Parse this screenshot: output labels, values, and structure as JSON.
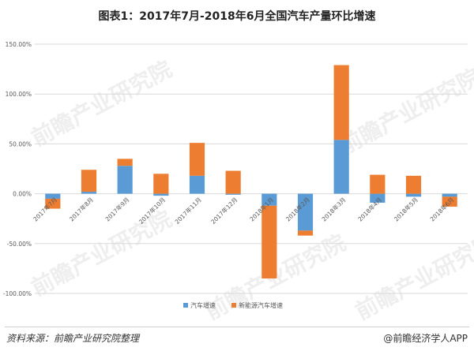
{
  "title": "图表1：2017年7月-2018年6月全国汽车产量环比增速",
  "watermark_text": "前瞻产业研究院",
  "footer": {
    "source": "资料来源：前瞻产业研究院整理",
    "brand": "@前瞻经济学人APP"
  },
  "colors": {
    "blue": "#5b9bd5",
    "orange": "#ed7d31",
    "grid": "#d9d9d9",
    "axis_text": "#595959"
  },
  "chart_data": {
    "type": "bar",
    "stacked": true,
    "categories": [
      "2017年7月",
      "2017年8月",
      "2017年9月",
      "2017年10月",
      "2017年11月",
      "2017年12月",
      "2018年1月",
      "2018年2月",
      "2018年3月",
      "2018年4月",
      "2018年5月",
      "2018年6月"
    ],
    "series": [
      {
        "name": "汽车增速",
        "color": "#5b9bd5",
        "values": [
          -5.0,
          2.0,
          28.0,
          -2.0,
          18.0,
          -1.0,
          -12.0,
          -37.0,
          54.0,
          -9.0,
          -3.0,
          -3.0
        ]
      },
      {
        "name": "新能源汽车增速",
        "color": "#ed7d31",
        "values": [
          -10.0,
          22.0,
          7.0,
          20.0,
          33.0,
          23.0,
          -73.0,
          -5.0,
          75.0,
          19.0,
          18.0,
          -10.0
        ]
      }
    ],
    "y_ticks": [
      "150.00%",
      "100.00%",
      "50.00%",
      "0.00%",
      "-50.00%",
      "-100.00%"
    ],
    "y_tick_values": [
      150,
      100,
      50,
      0,
      -50,
      -100
    ],
    "ylim": [
      -100,
      150
    ],
    "grid": true,
    "legend_position": "bottom"
  }
}
